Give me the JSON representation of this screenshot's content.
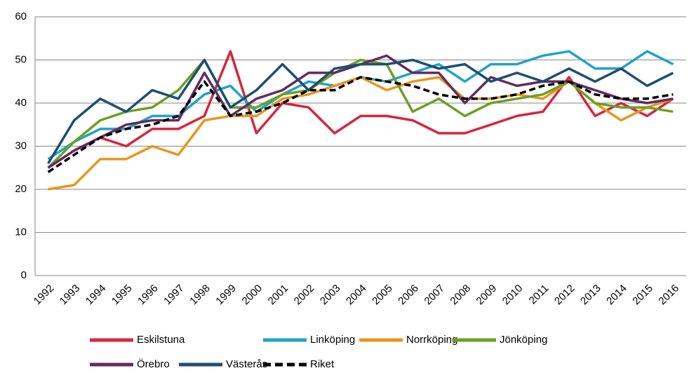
{
  "chart_data": {
    "type": "line",
    "categories": [
      "1992",
      "1993",
      "1994",
      "1995",
      "1996",
      "1997",
      "1998",
      "1999",
      "2000",
      "2001",
      "2002",
      "2003",
      "2004",
      "2005",
      "2006",
      "2007",
      "2008",
      "2009",
      "2010",
      "2011",
      "2012",
      "2013",
      "2014",
      "2015",
      "2016"
    ],
    "ylim": [
      0,
      60
    ],
    "yticks": [
      0,
      10,
      20,
      30,
      40,
      50,
      60
    ],
    "grid": true,
    "series": [
      {
        "name": "Eskilstuna",
        "color": "#d7263d",
        "values": [
          25,
          29,
          32,
          30,
          34,
          34,
          37,
          52,
          33,
          40,
          39,
          33,
          37,
          37,
          36,
          33,
          33,
          35,
          37,
          38,
          46,
          37,
          40,
          37,
          41
        ]
      },
      {
        "name": "Linköping",
        "color": "#1fa3c8",
        "values": [
          27,
          31,
          34,
          34,
          37,
          37,
          42,
          44,
          38,
          42,
          45,
          44,
          46,
          45,
          47,
          49,
          45,
          49,
          49,
          51,
          52,
          48,
          48,
          52,
          49
        ]
      },
      {
        "name": "Norrköping",
        "color": "#e8961e",
        "values": [
          20,
          21,
          27,
          27,
          30,
          28,
          36,
          37,
          37,
          41,
          42,
          44,
          46,
          43,
          45,
          46,
          41,
          41,
          42,
          41,
          45,
          40,
          36,
          39,
          41
        ]
      },
      {
        "name": "Jönköping",
        "color": "#6aa121",
        "values": [
          25,
          31,
          36,
          38,
          39,
          43,
          50,
          39,
          39,
          42,
          43,
          47,
          50,
          49,
          38,
          41,
          37,
          40,
          41,
          42,
          45,
          40,
          39,
          39,
          38
        ]
      },
      {
        "name": "Örebro",
        "color": "#632a63",
        "values": [
          25,
          29,
          32,
          35,
          36,
          36,
          47,
          37,
          41,
          43,
          47,
          47,
          49,
          51,
          47,
          47,
          40,
          46,
          44,
          45,
          45,
          43,
          41,
          40,
          41
        ]
      },
      {
        "name": "Västerås",
        "color": "#1d4e74",
        "values": [
          26,
          36,
          41,
          38,
          43,
          41,
          50,
          39,
          43,
          49,
          43,
          48,
          49,
          49,
          50,
          48,
          49,
          45,
          47,
          45,
          48,
          45,
          48,
          44,
          47
        ]
      },
      {
        "name": "Riket",
        "color": "#000000",
        "dashed": true,
        "values": [
          24,
          28,
          32,
          34,
          35,
          37,
          45,
          37,
          38,
          40,
          43,
          43,
          46,
          45,
          44,
          42,
          41,
          41,
          42,
          44,
          45,
          42,
          41,
          41,
          42
        ]
      }
    ]
  }
}
